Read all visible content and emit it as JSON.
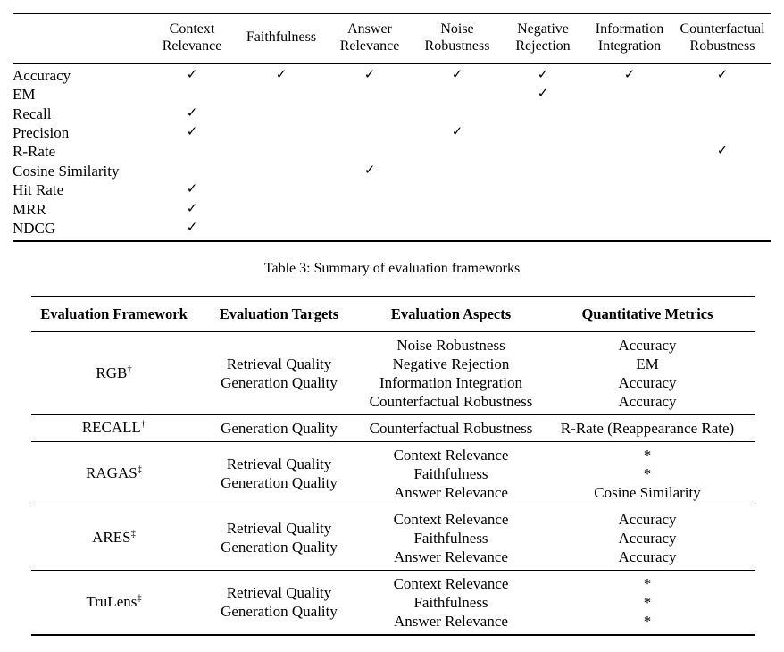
{
  "matrix_table": {
    "corner_label": "",
    "columns": [
      "Context Relevance",
      "Faithfulness",
      "Answer Relevance",
      "Noise Robustness",
      "Negative Rejection",
      "Information Integration",
      "Counterfactual Robustness"
    ],
    "check_glyph": "✓",
    "rows": [
      {
        "metric": "Accuracy",
        "checks": [
          "✓",
          "✓",
          "✓",
          "✓",
          "✓",
          "✓",
          "✓"
        ]
      },
      {
        "metric": "EM",
        "checks": [
          "",
          "",
          "",
          "",
          "✓",
          "",
          ""
        ]
      },
      {
        "metric": "Recall",
        "checks": [
          "✓",
          "",
          "",
          "",
          "",
          "",
          ""
        ]
      },
      {
        "metric": "Precision",
        "checks": [
          "✓",
          "",
          "",
          "✓",
          "",
          "",
          ""
        ]
      },
      {
        "metric": "R-Rate",
        "checks": [
          "",
          "",
          "",
          "",
          "",
          "",
          "✓"
        ]
      },
      {
        "metric": "Cosine Similarity",
        "checks": [
          "",
          "",
          "✓",
          "",
          "",
          "",
          ""
        ]
      },
      {
        "metric": "Hit Rate",
        "checks": [
          "✓",
          "",
          "",
          "",
          "",
          "",
          ""
        ]
      },
      {
        "metric": "MRR",
        "checks": [
          "✓",
          "",
          "",
          "",
          "",
          "",
          ""
        ]
      },
      {
        "metric": "NDCG",
        "checks": [
          "✓",
          "",
          "",
          "",
          "",
          "",
          ""
        ]
      }
    ]
  },
  "caption": "Table 3: Summary of evaluation frameworks",
  "frameworks_table": {
    "headers": [
      "Evaluation Framework",
      "Evaluation Targets",
      "Evaluation Aspects",
      "Quantitative Metrics"
    ],
    "rows": [
      {
        "name": "RGB",
        "marker": "†",
        "targets": [
          "Retrieval Quality",
          "Generation Quality"
        ],
        "aspects": [
          "Noise Robustness",
          "Negative Rejection",
          "Information Integration",
          "Counterfactual Robustness"
        ],
        "metrics": [
          "Accuracy",
          "EM",
          "Accuracy",
          "Accuracy"
        ]
      },
      {
        "name": "RECALL",
        "marker": "†",
        "targets": [
          "Generation Quality"
        ],
        "aspects": [
          "Counterfactual Robustness"
        ],
        "metrics": [
          "R-Rate (Reappearance Rate)"
        ]
      },
      {
        "name": "RAGAS",
        "marker": "‡",
        "targets": [
          "Retrieval Quality",
          "Generation Quality"
        ],
        "aspects": [
          "Context Relevance",
          "Faithfulness",
          "Answer Relevance"
        ],
        "metrics": [
          "*",
          "*",
          "Cosine Similarity"
        ]
      },
      {
        "name": "ARES",
        "marker": "‡",
        "targets": [
          "Retrieval Quality",
          "Generation Quality"
        ],
        "aspects": [
          "Context Relevance",
          "Faithfulness",
          "Answer Relevance"
        ],
        "metrics": [
          "Accuracy",
          "Accuracy",
          "Accuracy"
        ]
      },
      {
        "name": "TruLens",
        "marker": "‡",
        "targets": [
          "Retrieval Quality",
          "Generation Quality"
        ],
        "aspects": [
          "Context Relevance",
          "Faithfulness",
          "Answer Relevance"
        ],
        "metrics": [
          "*",
          "*",
          "*"
        ]
      }
    ]
  }
}
